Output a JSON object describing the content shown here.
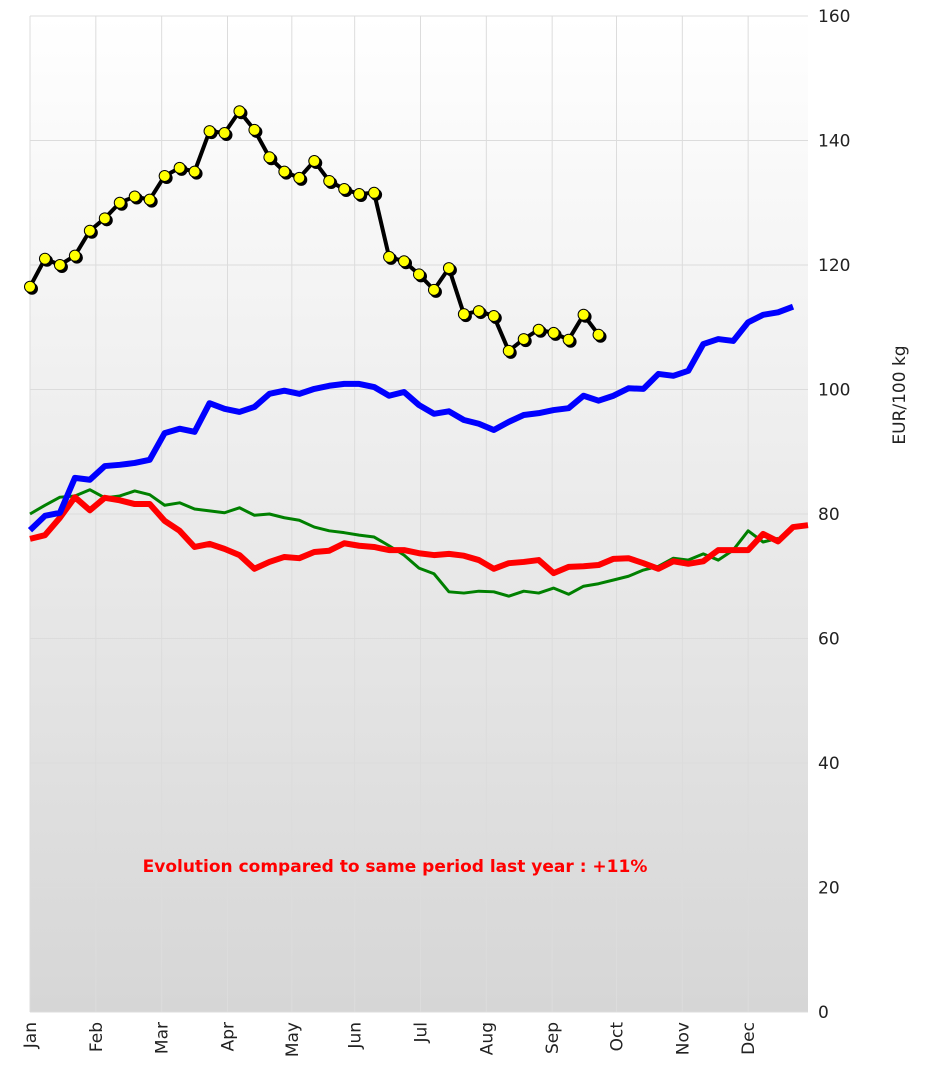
{
  "chart_data": {
    "type": "line",
    "y_label": "EUR/100 kg",
    "annotation": "Evolution compared to same period last year : +11%",
    "x": [
      1,
      2,
      3,
      4,
      5,
      6,
      7,
      8,
      9,
      10,
      11,
      12,
      13,
      14,
      15,
      16,
      17,
      18,
      19,
      20,
      21,
      22,
      23,
      24,
      25,
      26,
      27,
      28,
      29,
      30,
      31,
      32,
      33,
      34,
      35,
      36,
      37,
      38,
      39,
      40,
      41,
      42,
      43,
      44,
      45,
      46,
      47,
      48,
      49,
      50,
      51,
      52,
      53
    ],
    "xlim": [
      1,
      53
    ],
    "xticks": [
      {
        "value": 1,
        "label": "Jan"
      },
      {
        "value": 5.4,
        "label": "Feb"
      },
      {
        "value": 9.8,
        "label": "Mar"
      },
      {
        "value": 14.2,
        "label": "Apr"
      },
      {
        "value": 18.5,
        "label": "May"
      },
      {
        "value": 22.7,
        "label": "Jun"
      },
      {
        "value": 27.1,
        "label": "Jul"
      },
      {
        "value": 31.5,
        "label": "Aug"
      },
      {
        "value": 35.9,
        "label": "Sep"
      },
      {
        "value": 40.2,
        "label": "Oct"
      },
      {
        "value": 44.6,
        "label": "Nov"
      },
      {
        "value": 49,
        "label": "Dec"
      }
    ],
    "ylim": [
      0,
      160
    ],
    "yticks": [
      0,
      20,
      40,
      60,
      80,
      100,
      120,
      140,
      160
    ],
    "grid": true,
    "series": [
      {
        "color": "#008000",
        "line_width": 3,
        "markers": false,
        "values": [
          80,
          81.4,
          82.7,
          82.9,
          83.9,
          82.6,
          82.9,
          83.7,
          83.1,
          81.4,
          81.8,
          80.8,
          80.5,
          80.2,
          81,
          79.8,
          80,
          79.4,
          79,
          77.9,
          77.3,
          77,
          76.6,
          76.3,
          74.9,
          73.4,
          71.3,
          70.4,
          67.5,
          67.3,
          67.6,
          67.5,
          66.8,
          67.6,
          67.3,
          68.1,
          67.1,
          68.4,
          68.8,
          69.4,
          70,
          71,
          71.6,
          72.9,
          72.6,
          73.6,
          72.6,
          74.2,
          77.3,
          75.5,
          76.1,
          null,
          null
        ]
      },
      {
        "color": "#ff0000",
        "line_width": 6,
        "markers": false,
        "values": [
          76,
          76.6,
          79.4,
          82.7,
          80.6,
          82.6,
          82.2,
          81.6,
          81.6,
          78.9,
          77.3,
          74.7,
          75.2,
          74.4,
          73.4,
          71.2,
          72.3,
          73.1,
          72.9,
          73.9,
          74.1,
          75.3,
          74.9,
          74.7,
          74.2,
          74.2,
          73.7,
          73.4,
          73.6,
          73.3,
          72.6,
          71.2,
          72.1,
          72.3,
          72.6,
          70.5,
          71.5,
          71.6,
          71.8,
          72.8,
          72.9,
          72.1,
          71.2,
          72.4,
          72,
          72.4,
          74.2,
          74.2,
          74.2,
          76.8,
          75.6,
          77.9,
          78.2
        ]
      },
      {
        "color": "#0000ff",
        "line_width": 6,
        "markers": false,
        "values": [
          77.4,
          79.7,
          80.2,
          85.8,
          85.5,
          87.7,
          87.9,
          88.2,
          88.7,
          93,
          93.7,
          93.2,
          97.8,
          96.9,
          96.4,
          97.2,
          99.3,
          99.8,
          99.3,
          100.1,
          100.6,
          100.9,
          100.9,
          100.4,
          99,
          99.6,
          97.5,
          96.1,
          96.5,
          95.1,
          94.5,
          93.5,
          94.8,
          95.9,
          96.2,
          96.7,
          97,
          99,
          98.2,
          99,
          100.2,
          100.1,
          102.5,
          102.2,
          103,
          107.3,
          108.1,
          107.8,
          110.8,
          112,
          112.4,
          113.3,
          null
        ]
      },
      {
        "color": "#000000",
        "line_width": 4,
        "markers": true,
        "marker_color": "#ffff00",
        "values": [
          116.5,
          121,
          120,
          121.5,
          125.5,
          127.5,
          130,
          131,
          130.5,
          134.3,
          135.6,
          135,
          141.5,
          141.2,
          144.7,
          141.7,
          137.3,
          135,
          134,
          136.7,
          133.5,
          132.2,
          131.4,
          131.6,
          121.3,
          120.6,
          118.5,
          116,
          119.5,
          112.1,
          112.6,
          111.8,
          106.2,
          108.1,
          109.6,
          109.1,
          108,
          112,
          108.8,
          null,
          null,
          null,
          null,
          null,
          null,
          null,
          null,
          null,
          null,
          null,
          null,
          null,
          null
        ]
      }
    ]
  }
}
